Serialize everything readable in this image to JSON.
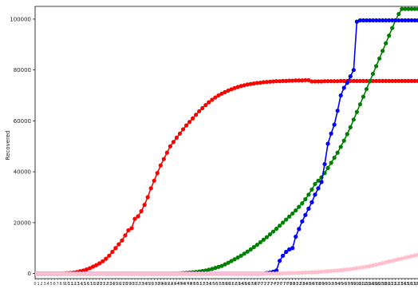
{
  "chart_data": {
    "type": "line",
    "title": "",
    "xlabel": "",
    "ylabel": "Recovered",
    "ylim": [
      -2000,
      105000
    ],
    "yticks": [
      0,
      20000,
      40000,
      60000,
      80000,
      100000
    ],
    "grid": false,
    "legend": "none",
    "x": [
      0,
      1,
      2,
      3,
      4,
      5,
      6,
      7,
      8,
      9,
      10,
      11,
      12,
      13,
      14,
      15,
      16,
      17,
      18,
      19,
      20,
      21,
      22,
      23,
      24,
      25,
      26,
      27,
      28,
      29,
      30,
      31,
      32,
      33,
      34,
      35,
      36,
      37,
      38,
      39,
      40,
      41,
      42,
      43,
      44,
      45,
      46,
      47,
      48,
      49,
      50,
      51,
      52,
      53,
      54,
      55,
      56,
      57,
      58,
      59,
      60,
      61,
      62,
      63,
      64,
      65,
      66,
      67,
      68,
      69,
      70,
      71,
      72,
      73,
      74,
      75,
      76,
      77,
      78,
      79,
      80,
      81,
      82,
      83,
      84,
      85,
      86,
      87,
      88,
      89,
      90,
      91,
      92,
      93,
      94,
      95,
      96,
      97,
      98,
      99,
      100,
      101,
      102,
      103,
      104,
      105,
      106,
      107,
      108,
      109,
      110,
      111,
      112,
      113,
      114,
      115,
      116,
      117,
      118,
      119
    ],
    "series": [
      {
        "color": "#ff0000",
        "values": [
          0,
          0,
          0,
          0,
          0,
          0,
          0,
          0,
          50,
          100,
          150,
          250,
          400,
          600,
          900,
          1200,
          1600,
          2100,
          2700,
          3300,
          4000,
          4800,
          5800,
          7000,
          8500,
          10000,
          11500,
          13000,
          15000,
          17000,
          17800,
          21500,
          22500,
          24500,
          27000,
          30000,
          33500,
          36500,
          39500,
          42500,
          45000,
          47500,
          50000,
          51700,
          53400,
          55000,
          56700,
          58200,
          59600,
          61000,
          62400,
          63800,
          65000,
          66200,
          67300,
          68300,
          69200,
          70000,
          70700,
          71300,
          71900,
          72400,
          72900,
          73300,
          73700,
          74000,
          74300,
          74500,
          74700,
          74900,
          75000,
          75200,
          75300,
          75400,
          75500,
          75600,
          75600,
          75700,
          75700,
          75800,
          75800,
          75900,
          75900,
          75900,
          76000,
          76000,
          75500,
          75500,
          75500,
          75500,
          75600,
          75600,
          75600,
          75600,
          75600,
          75700,
          75700,
          75700,
          75700,
          75700,
          75700,
          75700,
          75700,
          75700,
          75700,
          75700,
          75700,
          75700,
          75700,
          75700,
          75700,
          75700,
          75700,
          75700,
          75700,
          75700,
          75700,
          75700,
          75700,
          75700
        ]
      },
      {
        "color": "#008000",
        "values": [
          0,
          0,
          0,
          0,
          0,
          0,
          0,
          0,
          0,
          0,
          0,
          0,
          0,
          0,
          0,
          0,
          0,
          0,
          0,
          0,
          0,
          0,
          0,
          0,
          0,
          0,
          0,
          0,
          0,
          0,
          0,
          0,
          0,
          0,
          0,
          0,
          0,
          0,
          0,
          0,
          0,
          0,
          0,
          0,
          0,
          100,
          200,
          300,
          400,
          500,
          600,
          800,
          1000,
          1200,
          1500,
          1800,
          2200,
          2600,
          3000,
          3600,
          4200,
          4900,
          5600,
          6300,
          7000,
          7800,
          8600,
          9500,
          10400,
          11300,
          12300,
          13300,
          14300,
          15400,
          16500,
          17600,
          18800,
          20000,
          21200,
          22400,
          23600,
          24800,
          26200,
          27600,
          29200,
          31000,
          33000,
          35200,
          36500,
          37800,
          39500,
          41500,
          43500,
          45500,
          47500,
          49800,
          52200,
          54800,
          57500,
          60500,
          63500,
          66500,
          69500,
          72500,
          75500,
          78500,
          81500,
          84500,
          87500,
          90500,
          93500,
          96500,
          99500,
          102000,
          104000,
          104000,
          104000,
          104000,
          104000,
          104000
        ]
      },
      {
        "color": "#0000ff",
        "values": [
          0,
          0,
          0,
          0,
          0,
          0,
          0,
          0,
          0,
          0,
          0,
          0,
          0,
          0,
          0,
          0,
          0,
          0,
          0,
          0,
          0,
          0,
          0,
          0,
          0,
          0,
          0,
          0,
          0,
          0,
          0,
          0,
          0,
          0,
          0,
          0,
          0,
          0,
          0,
          0,
          0,
          0,
          0,
          0,
          0,
          0,
          0,
          0,
          0,
          0,
          0,
          0,
          0,
          0,
          0,
          0,
          0,
          0,
          0,
          0,
          0,
          0,
          0,
          0,
          0,
          0,
          0,
          0,
          0,
          0,
          0,
          0,
          200,
          400,
          700,
          1200,
          5000,
          7000,
          8500,
          9500,
          10000,
          14500,
          17500,
          20500,
          23000,
          25500,
          28000,
          31000,
          33500,
          36000,
          43000,
          51000,
          55000,
          58500,
          64000,
          70000,
          73000,
          75000,
          77500,
          80000,
          99000,
          99500,
          99500,
          99500,
          99500,
          99500,
          99500,
          99500,
          99500,
          99500,
          99500,
          99500,
          99500,
          99500,
          99500,
          99500,
          99500,
          99500,
          99500,
          99500
        ]
      },
      {
        "color": "#ffc0cb",
        "values": [
          0,
          0,
          0,
          0,
          0,
          0,
          0,
          0,
          0,
          0,
          0,
          0,
          0,
          0,
          0,
          0,
          0,
          0,
          0,
          0,
          0,
          0,
          0,
          0,
          0,
          0,
          0,
          0,
          0,
          0,
          0,
          0,
          0,
          0,
          0,
          0,
          0,
          0,
          0,
          0,
          0,
          0,
          0,
          0,
          0,
          0,
          0,
          0,
          0,
          0,
          0,
          0,
          0,
          0,
          0,
          0,
          0,
          0,
          0,
          0,
          0,
          0,
          0,
          0,
          0,
          0,
          0,
          0,
          0,
          0,
          0,
          0,
          0,
          0,
          0,
          0,
          0,
          50,
          100,
          150,
          200,
          250,
          300,
          350,
          400,
          450,
          500,
          550,
          600,
          700,
          800,
          900,
          1000,
          1100,
          1200,
          1300,
          1450,
          1600,
          1750,
          1900,
          2100,
          2300,
          2500,
          2700,
          2900,
          3200,
          3500,
          3800,
          4100,
          4400,
          4700,
          5000,
          5300,
          5600,
          5900,
          6200,
          6500,
          6800,
          7100,
          7400
        ]
      }
    ]
  }
}
